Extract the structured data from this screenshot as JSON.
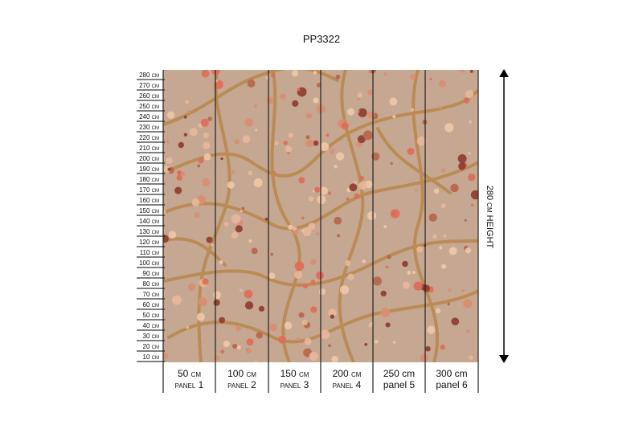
{
  "title": "PP3322",
  "ruler": [
    "280 cm",
    "270 cm",
    "260 cm",
    "250 cm",
    "240 cm",
    "230 cm",
    "220 cm",
    "210 cm",
    "200 cm",
    "190 cm",
    "180 cm",
    "170 cm",
    "160 cm",
    "150 cm",
    "140 cm",
    "130 cm",
    "120 cm",
    "110 cm",
    "100 cm",
    "90 cm",
    "80 cm",
    "70 cm",
    "60 cm",
    "50 cm",
    "40 cm",
    "30 cm",
    "20 cm",
    "10 cm"
  ],
  "panels": [
    {
      "width": "50 cm",
      "label": "panel 1"
    },
    {
      "width": "100 cm",
      "label": "panel 2"
    },
    {
      "width": "150 cm",
      "label": "panel 3"
    },
    {
      "width": "200 cm",
      "label": "panel 4"
    },
    {
      "width": "250 cm",
      "label": "panel 5"
    },
    {
      "width": "300 cm",
      "label": "panel 6"
    }
  ],
  "height_label": "280 cm HEIGHT"
}
